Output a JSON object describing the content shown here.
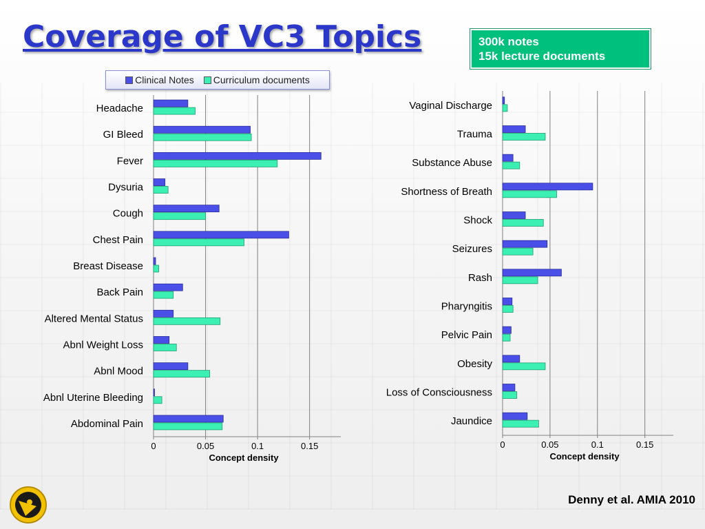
{
  "title": "Coverage of VC3 Topics",
  "notes": {
    "line1": "300k notes",
    "line2": "15k lecture documents"
  },
  "citation": "Denny et al. AMIA 2010",
  "colors": {
    "clinical": "#4a4fe8",
    "curriculum": "#3cf0b4",
    "title": "#2a37c9",
    "note_box": "#00c07e"
  },
  "chart_data": [
    {
      "type": "bar",
      "orientation": "horizontal",
      "categories": [
        "Headache",
        "GI Bleed",
        "Fever",
        "Dysuria",
        "Cough",
        "Chest Pain",
        "Breast Disease",
        "Back Pain",
        "Altered Mental Status",
        "Abnl Weight Loss",
        "Abnl Mood",
        "Abnl Uterine Bleeding",
        "Abdominal Pain"
      ],
      "series": [
        {
          "name": "Clinical Notes",
          "values": [
            0.033,
            0.093,
            0.161,
            0.011,
            0.063,
            0.13,
            0.002,
            0.028,
            0.019,
            0.015,
            0.033,
            0.001,
            0.067
          ]
        },
        {
          "name": "Curriculum documents",
          "values": [
            0.04,
            0.094,
            0.119,
            0.014,
            0.05,
            0.087,
            0.005,
            0.019,
            0.064,
            0.022,
            0.054,
            0.008,
            0.066
          ]
        }
      ],
      "xlabel": "Concept density",
      "ylabel": "",
      "xlim": [
        0,
        0.18
      ],
      "xticks": [
        "0",
        "0.05",
        "0.1",
        "0.15"
      ],
      "grid": true,
      "legend": "top"
    },
    {
      "type": "bar",
      "orientation": "horizontal",
      "categories": [
        "Vaginal Discharge",
        "Trauma",
        "Substance Abuse",
        "Shortness of Breath",
        "Shock",
        "Seizures",
        "Rash",
        "Pharyngitis",
        "Pelvic Pain",
        "Obesity",
        "Loss of Consciousness",
        "Jaundice"
      ],
      "series": [
        {
          "name": "Clinical Notes",
          "values": [
            0.002,
            0.024,
            0.011,
            0.095,
            0.024,
            0.047,
            0.062,
            0.01,
            0.009,
            0.018,
            0.013,
            0.026
          ]
        },
        {
          "name": "Curriculum documents",
          "values": [
            0.005,
            0.045,
            0.018,
            0.057,
            0.043,
            0.032,
            0.037,
            0.011,
            0.008,
            0.045,
            0.015,
            0.038
          ]
        }
      ],
      "xlabel": "Concept density",
      "ylabel": "",
      "xlim": [
        0,
        0.18
      ],
      "xticks": [
        "0",
        "0.05",
        "0.1",
        "0.15"
      ],
      "grid": true
    }
  ]
}
